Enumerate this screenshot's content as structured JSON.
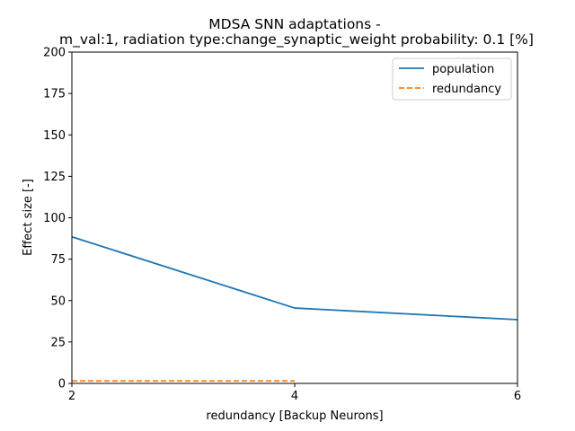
{
  "chart_data": {
    "type": "line",
    "title_line1": "MDSA SNN adaptations -",
    "title_line2": "m_val:1, radiation type:change_synaptic_weight probability: 0.1 [%]",
    "xlabel": "redundancy [Backup Neurons]",
    "ylabel": "Effect size [-]",
    "xlim": [
      2,
      6
    ],
    "ylim": [
      0,
      200
    ],
    "xticks": [
      2,
      4,
      6
    ],
    "yticks": [
      0,
      25,
      50,
      75,
      100,
      125,
      150,
      175,
      200
    ],
    "grid": false,
    "legend_position": "top-right",
    "series": [
      {
        "name": "population",
        "color": "#1f77b4",
        "style": "solid",
        "x": [
          2,
          4,
          6
        ],
        "y": [
          88.5,
          45.5,
          38.5
        ]
      },
      {
        "name": "redundancy",
        "color": "#ff7f0e",
        "style": "dashed",
        "x": [
          2,
          4
        ],
        "y": [
          1.5,
          1.5
        ]
      }
    ]
  }
}
